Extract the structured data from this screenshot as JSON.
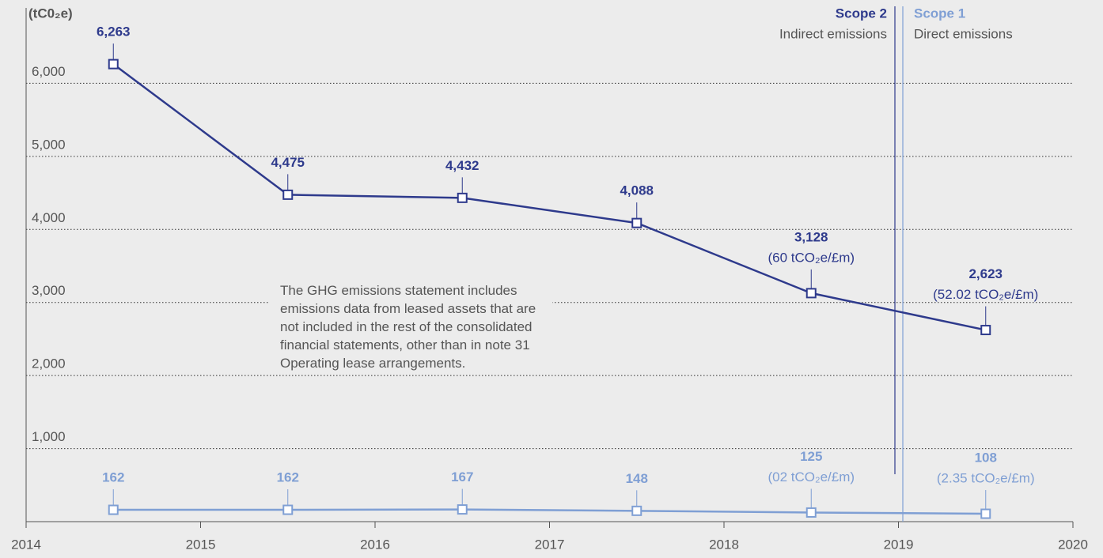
{
  "chart_data": {
    "type": "line",
    "y_label": "(tC0₂e)",
    "x": [
      2014.5,
      2015.5,
      2016.5,
      2017.5,
      2018.5,
      2019.5
    ],
    "xlim": [
      2014,
      2020
    ],
    "xticks": [
      2014,
      2015,
      2016,
      2017,
      2018,
      2019,
      2020
    ],
    "ylim": [
      0,
      7000
    ],
    "yticks": [
      {
        "value": 1000,
        "label": "1,000"
      },
      {
        "value": 2000,
        "label": "2,000"
      },
      {
        "value": 3000,
        "label": "3,000"
      },
      {
        "value": 4000,
        "label": "4,000"
      },
      {
        "value": 5000,
        "label": "5,000"
      },
      {
        "value": 6000,
        "label": "6,000"
      }
    ],
    "grid": true,
    "series": [
      {
        "name": "Scope 2",
        "description": "Indirect emissions",
        "color": "#2e3a8c",
        "values": [
          6263,
          4475,
          4432,
          4088,
          3128,
          2623
        ],
        "value_labels": [
          "6,263",
          "4,475",
          "4,432",
          "4,088",
          "3,128",
          "2,623"
        ],
        "notes": [
          null,
          null,
          null,
          null,
          "(60 tCO₂e/£m)",
          "(52.02 tCO₂e/£m)"
        ]
      },
      {
        "name": "Scope 1",
        "description": "Direct emissions",
        "color": "#7f9fd4",
        "values": [
          162,
          162,
          167,
          148,
          125,
          108
        ],
        "value_labels": [
          "162",
          "162",
          "167",
          "148",
          "125",
          "108"
        ],
        "notes": [
          null,
          null,
          null,
          null,
          "(02 tCO₂e/£m)",
          "(2.35 tCO₂e/£m)"
        ]
      }
    ],
    "annotation": "The GHG emissions statement includes emissions data from leased assets that are not included in the rest of the consolidated financial statements, other than in note 31 Operating lease arrangements."
  }
}
